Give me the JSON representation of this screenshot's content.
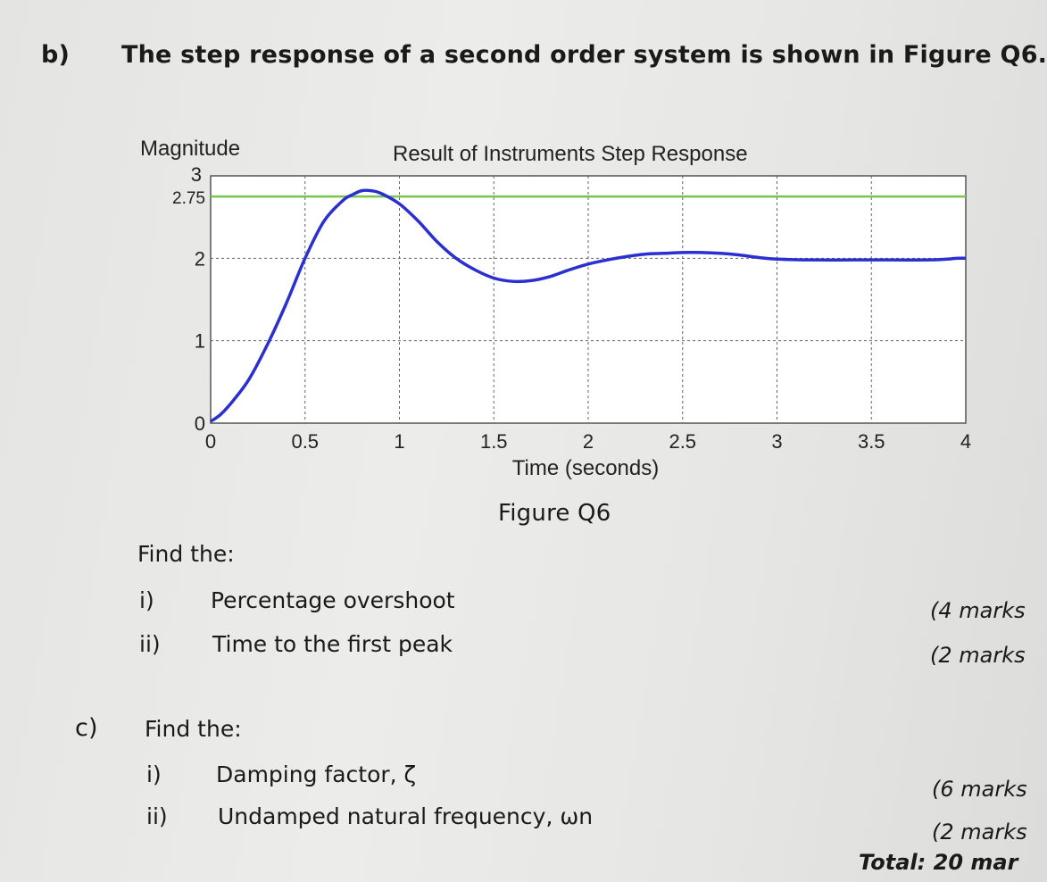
{
  "part_b": {
    "label": "b)",
    "statement": "The step response of a second order system is shown in Figure Q6.",
    "find_label": "Find the:",
    "items": [
      {
        "num": "i)",
        "text": "Percentage overshoot",
        "marks": "(4 marks"
      },
      {
        "num": "ii)",
        "text": "Time to the first peak",
        "marks": "(2 marks"
      }
    ]
  },
  "figure": {
    "caption": "Figure Q6"
  },
  "part_c": {
    "label": "c)",
    "find_label": "Find the:",
    "items": [
      {
        "num": "i)",
        "text": "Damping factor, ζ",
        "marks": "(6 marks"
      },
      {
        "num": "ii)",
        "text": "Undamped natural frequency, ωn",
        "marks": "(2 marks"
      }
    ]
  },
  "total": "Total: 20 mar",
  "chart_data": {
    "type": "line",
    "title": "Result of Instruments Step Response",
    "xlabel": "Time (seconds)",
    "ylabel": "Magnitude",
    "xlim": [
      0,
      4
    ],
    "ylim": [
      0,
      3
    ],
    "x_ticks": [
      "0",
      "0.5",
      "1",
      "1.5",
      "2",
      "2.5",
      "3",
      "3.5",
      "4"
    ],
    "y_ticks": [
      "0",
      "1",
      "2",
      "2.75",
      "3"
    ],
    "grid": true,
    "reference_line": {
      "y": 2.75,
      "color": "#77c64a"
    },
    "series": [
      {
        "color": "#2a2fd0",
        "x": [
          0,
          0.05,
          0.1,
          0.2,
          0.3,
          0.4,
          0.5,
          0.6,
          0.7,
          0.75,
          0.8,
          0.85,
          0.9,
          1.0,
          1.1,
          1.2,
          1.3,
          1.4,
          1.5,
          1.6,
          1.7,
          1.8,
          1.9,
          2.0,
          2.1,
          2.2,
          2.3,
          2.4,
          2.5,
          2.6,
          2.7,
          2.8,
          2.9,
          3.0,
          3.2,
          3.4,
          3.6,
          3.8,
          3.9,
          3.95,
          4.0
        ],
        "y": [
          0.02,
          0.1,
          0.22,
          0.52,
          0.95,
          1.45,
          2.0,
          2.45,
          2.7,
          2.77,
          2.82,
          2.82,
          2.79,
          2.66,
          2.45,
          2.2,
          2.0,
          1.86,
          1.76,
          1.72,
          1.73,
          1.78,
          1.86,
          1.93,
          1.98,
          2.02,
          2.05,
          2.06,
          2.07,
          2.07,
          2.06,
          2.04,
          2.01,
          1.99,
          1.98,
          1.98,
          1.98,
          1.98,
          1.99,
          2.0,
          2.0
        ]
      }
    ]
  }
}
